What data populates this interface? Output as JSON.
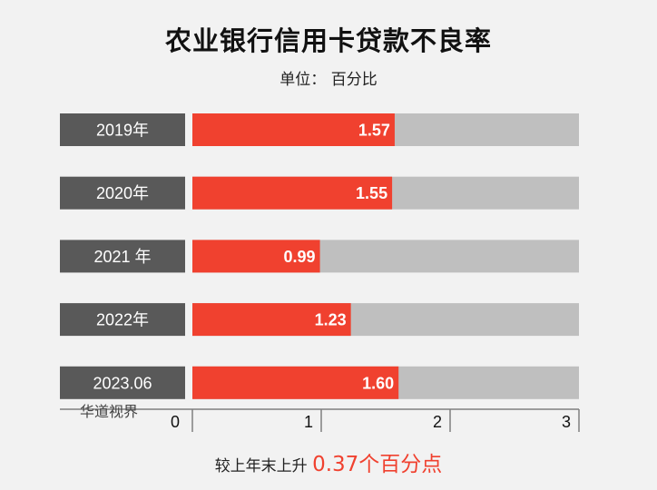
{
  "title": "农业银行信用卡贷款不良率",
  "subtitle": "单位： 百分比",
  "watermark": "华道视界",
  "footer": {
    "prefix": "较上年末上升 ",
    "highlight": "0.37个百分点"
  },
  "colors": {
    "label_bg": "#595959",
    "bar": "#f0412f",
    "track": "#bfbfbf",
    "axis": "#7f7f7f"
  },
  "chart_data": {
    "type": "bar",
    "orientation": "horizontal",
    "categories": [
      "2019年",
      "2020年",
      "2021 年",
      "2022年",
      "2023.06"
    ],
    "values": [
      1.57,
      1.55,
      0.99,
      1.23,
      1.6
    ],
    "value_labels": [
      "1.57",
      "1.55",
      "0.99",
      "1.23",
      "1.60"
    ],
    "xlim": [
      0,
      3
    ],
    "xticks": [
      0,
      1,
      2,
      3
    ],
    "xtick_labels": [
      "0",
      "1",
      "2",
      "3"
    ],
    "grid": false,
    "legend": "none"
  }
}
